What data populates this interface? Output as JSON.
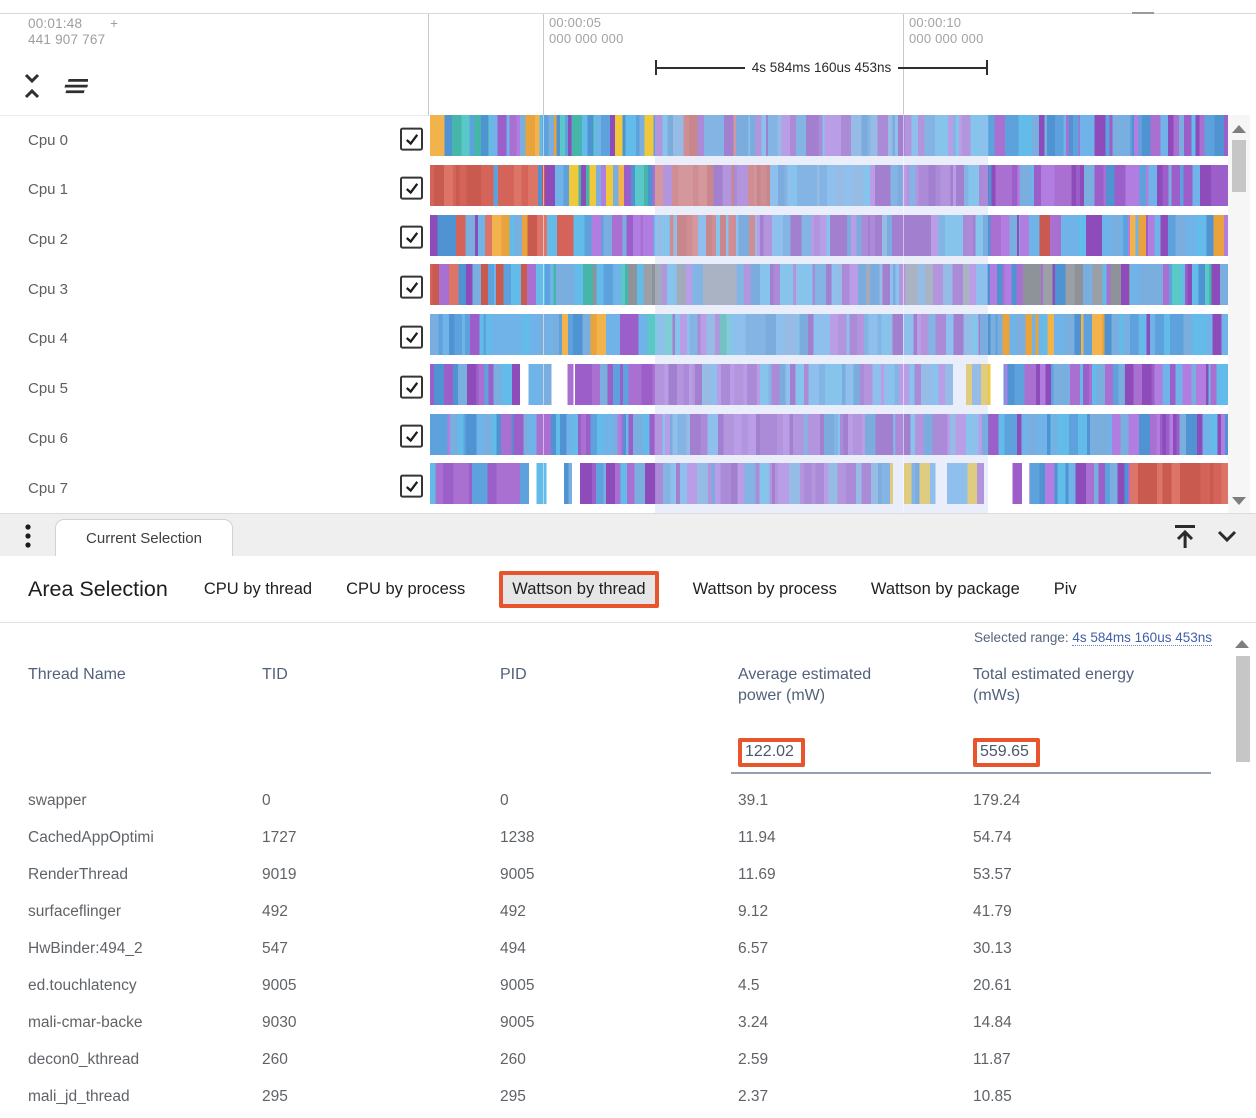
{
  "timeline": {
    "start_time": "00:01:48",
    "start_plus": "+",
    "start_subsecond": "441 907 767",
    "ticks": [
      {
        "time": "00:00:05",
        "subsecond": "000 000 000"
      },
      {
        "time": "00:00:10",
        "subsecond": "000 000 000"
      }
    ],
    "selection_duration": "4s 584ms 160us 453ns"
  },
  "tracks": {
    "rows": [
      {
        "label": "Cpu 0",
        "checked": true,
        "seed": 11,
        "phases": [
          [
            60,
            "BPTORM"
          ],
          [
            30,
            "PPPB"
          ],
          [
            40,
            "OOBB"
          ],
          [
            55,
            "BTPB"
          ],
          [
            40,
            "OOBY"
          ],
          [
            95,
            "BBPR"
          ],
          [
            145,
            "BBPP"
          ],
          [
            185,
            "BBBP"
          ],
          [
            148,
            "BBPP"
          ]
        ]
      },
      {
        "label": "Cpu 1",
        "checked": true,
        "seed": 22,
        "phases": [
          [
            115,
            "RRRRB"
          ],
          [
            110,
            "BBTPYO"
          ],
          [
            115,
            "RRRRP"
          ],
          [
            100,
            "BBBB"
          ],
          [
            150,
            "PPPB"
          ],
          [
            208,
            "BBPP"
          ]
        ]
      },
      {
        "label": "Cpu 2",
        "checked": true,
        "seed": 33,
        "phases": [
          [
            55,
            "BBPR"
          ],
          [
            90,
            "RROB"
          ],
          [
            95,
            "BPPB"
          ],
          [
            85,
            "RRRB"
          ],
          [
            115,
            "BPPB"
          ],
          [
            150,
            "PPBB"
          ],
          [
            110,
            "BBRP"
          ],
          [
            98,
            "BBPO"
          ]
        ]
      },
      {
        "label": "Cpu 3",
        "checked": true,
        "seed": 44,
        "phases": [
          [
            120,
            "BBPPR"
          ],
          [
            90,
            "BPGT"
          ],
          [
            120,
            "GGBP"
          ],
          [
            100,
            "BBPP"
          ],
          [
            130,
            "PBBG"
          ],
          [
            140,
            "GGBP"
          ],
          [
            98,
            "BTBP"
          ]
        ]
      },
      {
        "label": "Cpu 4",
        "checked": true,
        "seed": 55,
        "phases": [
          [
            100,
            "BBBP"
          ],
          [
            90,
            "BBOP"
          ],
          [
            110,
            "BBTP"
          ],
          [
            100,
            "PBBB"
          ],
          [
            150,
            "BBPP"
          ],
          [
            150,
            "BBBO"
          ],
          [
            98,
            "BBPB"
          ]
        ]
      },
      {
        "label": "Cpu 5",
        "checked": true,
        "seed": 66,
        "phases": [
          [
            90,
            "PPBB"
          ],
          [
            55,
            "BWPB"
          ],
          [
            120,
            "PPPB"
          ],
          [
            130,
            "PBBP"
          ],
          [
            120,
            "BBPP"
          ],
          [
            60,
            "WYBB"
          ],
          [
            120,
            "BPPB"
          ],
          [
            103,
            "PPBB"
          ]
        ]
      },
      {
        "label": "Cpu 6",
        "checked": true,
        "seed": 77,
        "phases": [
          [
            130,
            "BBPP"
          ],
          [
            130,
            "PPBB"
          ],
          [
            130,
            "BPPP"
          ],
          [
            130,
            "BBPP"
          ],
          [
            140,
            "PBBB"
          ],
          [
            138,
            "PPBB"
          ]
        ]
      },
      {
        "label": "Cpu 7",
        "checked": true,
        "seed": 88,
        "phases": [
          [
            90,
            "PPPB"
          ],
          [
            60,
            "BBWW"
          ],
          [
            100,
            "PBBP"
          ],
          [
            120,
            "BBPP"
          ],
          [
            90,
            "PPPB"
          ],
          [
            80,
            "WBYB"
          ],
          [
            60,
            "YPWB"
          ],
          [
            100,
            "BBPP"
          ],
          [
            98,
            "RRRR"
          ]
        ]
      }
    ],
    "palettes": {
      "B": [
        "#5da2dc",
        "#6fb3e8",
        "#4f93d2",
        "#62bbe8",
        "#7aaede"
      ],
      "P": [
        "#9c5ec8",
        "#a970d2",
        "#8d4cba",
        "#b27de0"
      ],
      "R": [
        "#d4645a",
        "#c95a50",
        "#dd7468"
      ],
      "O": [
        "#e8a33d",
        "#f2b24c"
      ],
      "T": [
        "#46b5aa",
        "#5ac8c8"
      ],
      "Y": [
        "#f0c83c"
      ],
      "G": [
        "#9aa0a6",
        "#8d9399"
      ],
      "W": [
        "#ffffff"
      ],
      "M": [
        "#c868c8"
      ]
    }
  },
  "panel": {
    "tab_label": "Current Selection"
  },
  "details": {
    "title": "Area Selection",
    "tabs": [
      {
        "label": "CPU by thread",
        "selected": false
      },
      {
        "label": "CPU by process",
        "selected": false
      },
      {
        "label": "Wattson by thread",
        "selected": true
      },
      {
        "label": "Wattson by process",
        "selected": false
      },
      {
        "label": "Wattson by package",
        "selected": false
      },
      {
        "label": "Piv",
        "selected": false
      }
    ],
    "selected_range_label": "Selected range:",
    "selected_range_value": "4s 584ms 160us 453ns",
    "table": {
      "columns": [
        "Thread Name",
        "TID",
        "PID",
        "Average estimated power (mW)",
        "Total estimated energy (mWs)"
      ],
      "summary": {
        "avg_power": "122.02",
        "total_energy": "559.65"
      },
      "rows": [
        [
          "swapper",
          "0",
          "0",
          "39.1",
          "179.24"
        ],
        [
          "CachedAppOptimi",
          "1727",
          "1238",
          "11.94",
          "54.74"
        ],
        [
          "RenderThread",
          "9019",
          "9005",
          "11.69",
          "53.57"
        ],
        [
          "surfaceflinger",
          "492",
          "492",
          "9.12",
          "41.79"
        ],
        [
          "HwBinder:494_2",
          "547",
          "494",
          "6.57",
          "30.13"
        ],
        [
          "ed.touchlatency",
          "9005",
          "9005",
          "4.5",
          "20.61"
        ],
        [
          "mali-cmar-backe",
          "9030",
          "9005",
          "3.24",
          "14.84"
        ],
        [
          "decon0_kthread",
          "260",
          "260",
          "2.59",
          "11.87"
        ],
        [
          "mali_jd_thread",
          "295",
          "295",
          "2.37",
          "10.85"
        ]
      ]
    }
  },
  "colors": {
    "annotation": "#e8542c",
    "link_blue": "#3f5fa8",
    "table_header_text": "#52617a",
    "selection_overlay": "rgba(197,209,241,0.38)"
  }
}
